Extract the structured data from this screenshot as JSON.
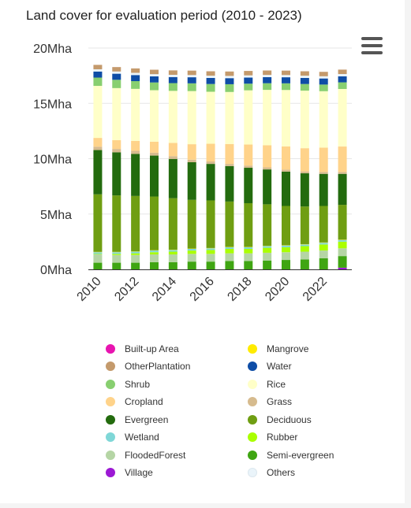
{
  "title": "Land cover for evaluation period (2010 - 2023)",
  "menu_icon": "hamburger-menu-icon",
  "chart_data": {
    "type": "bar",
    "stacked": true,
    "title": "Land cover for evaluation period (2010 - 2023)",
    "y_ticks": [
      "0Mha",
      "5Mha",
      "10Mha",
      "15Mha",
      "20Mha"
    ],
    "ylim": [
      0,
      20
    ],
    "y_unit": "Mha",
    "categories": [
      "2010",
      "2011",
      "2012",
      "2013",
      "2014",
      "2015",
      "2016",
      "2017",
      "2018",
      "2019",
      "2020",
      "2021",
      "2022",
      "2023"
    ],
    "x_tick_labels": [
      "2010",
      "",
      "2012",
      "",
      "2014",
      "",
      "2016",
      "",
      "2018",
      "",
      "2020",
      "",
      "2022",
      ""
    ],
    "grid": true,
    "legend_position": "bottom",
    "series": [
      {
        "name": "Village",
        "color": "#9c19d4",
        "values": [
          0,
          0,
          0,
          0,
          0,
          0,
          0,
          0,
          0,
          0,
          0,
          0,
          0,
          0.15
        ]
      },
      {
        "name": "Semi-evergreen",
        "color": "#3fa512",
        "values": [
          0.6,
          0.6,
          0.6,
          0.65,
          0.65,
          0.7,
          0.7,
          0.75,
          0.75,
          0.8,
          0.85,
          0.9,
          1.0,
          1.05
        ]
      },
      {
        "name": "FloodedForest",
        "color": "#b5d5a5",
        "values": [
          0.75,
          0.7,
          0.7,
          0.7,
          0.7,
          0.7,
          0.7,
          0.7,
          0.7,
          0.7,
          0.7,
          0.7,
          0.7,
          0.7
        ]
      },
      {
        "name": "Rubber",
        "color": "#aaff00",
        "values": [
          0.05,
          0.1,
          0.15,
          0.2,
          0.25,
          0.3,
          0.35,
          0.4,
          0.4,
          0.45,
          0.45,
          0.5,
          0.55,
          0.6
        ]
      },
      {
        "name": "Wetland",
        "color": "#7fd7d7",
        "values": [
          0.15,
          0.15,
          0.15,
          0.15,
          0.15,
          0.15,
          0.15,
          0.15,
          0.15,
          0.15,
          0.15,
          0.15,
          0.15,
          0.15
        ]
      },
      {
        "name": "Mangrove",
        "color": "#ffeb00",
        "values": [
          0.03,
          0.03,
          0.03,
          0.03,
          0.03,
          0.03,
          0.03,
          0.03,
          0.03,
          0.03,
          0.03,
          0.03,
          0.03,
          0.03
        ]
      },
      {
        "name": "Deciduous",
        "color": "#6f9e12",
        "values": [
          5.2,
          5.1,
          5.0,
          4.85,
          4.65,
          4.4,
          4.3,
          4.1,
          3.95,
          3.75,
          3.55,
          3.4,
          3.3,
          3.15
        ]
      },
      {
        "name": "Evergreen",
        "color": "#236b0e",
        "values": [
          4.0,
          3.9,
          3.8,
          3.7,
          3.55,
          3.4,
          3.3,
          3.2,
          3.2,
          3.15,
          3.1,
          3.0,
          2.9,
          2.8
        ]
      },
      {
        "name": "Grass",
        "color": "#d6bb8e",
        "values": [
          0.3,
          0.3,
          0.28,
          0.26,
          0.25,
          0.23,
          0.22,
          0.2,
          0.2,
          0.19,
          0.18,
          0.17,
          0.17,
          0.17
        ]
      },
      {
        "name": "Cropland",
        "color": "#ffd38a",
        "values": [
          0.8,
          0.8,
          0.9,
          1.0,
          1.2,
          1.4,
          1.6,
          1.8,
          1.9,
          2.0,
          2.1,
          2.1,
          2.2,
          2.3
        ]
      },
      {
        "name": "Rice",
        "color": "#ffffc8",
        "values": [
          4.7,
          4.7,
          4.7,
          4.65,
          4.7,
          4.8,
          4.7,
          4.7,
          4.9,
          5.0,
          5.1,
          5.2,
          5.1,
          5.2
        ]
      },
      {
        "name": "Shrub",
        "color": "#88cf70",
        "values": [
          0.75,
          0.75,
          0.7,
          0.7,
          0.7,
          0.7,
          0.7,
          0.7,
          0.6,
          0.6,
          0.6,
          0.6,
          0.6,
          0.6
        ]
      },
      {
        "name": "Water",
        "color": "#0e4da6",
        "values": [
          0.55,
          0.55,
          0.55,
          0.55,
          0.55,
          0.55,
          0.55,
          0.55,
          0.55,
          0.55,
          0.55,
          0.55,
          0.55,
          0.55
        ]
      },
      {
        "name": "Others",
        "color": "#eaf4fa",
        "values": [
          0.2,
          0.2,
          0.2,
          0.2,
          0.2,
          0.2,
          0.2,
          0.2,
          0.2,
          0.2,
          0.2,
          0.2,
          0.2,
          0.2
        ]
      },
      {
        "name": "OtherPlantation",
        "color": "#c49a6c",
        "values": [
          0.4,
          0.4,
          0.4,
          0.4,
          0.4,
          0.4,
          0.4,
          0.4,
          0.4,
          0.4,
          0.4,
          0.4,
          0.4,
          0.4
        ]
      },
      {
        "name": "Built-up Area",
        "color": "#e814b0",
        "values": [
          0,
          0,
          0,
          0,
          0,
          0,
          0,
          0,
          0,
          0,
          0,
          0,
          0,
          0
        ]
      }
    ],
    "legend": [
      {
        "name": "Built-up Area",
        "color": "#e814b0"
      },
      {
        "name": "Mangrove",
        "color": "#ffeb00"
      },
      {
        "name": "OtherPlantation",
        "color": "#c49a6c"
      },
      {
        "name": "Water",
        "color": "#0e4da6"
      },
      {
        "name": "Shrub",
        "color": "#88cf70"
      },
      {
        "name": "Rice",
        "color": "#ffffc8"
      },
      {
        "name": "Cropland",
        "color": "#ffd38a"
      },
      {
        "name": "Grass",
        "color": "#d6bb8e"
      },
      {
        "name": "Evergreen",
        "color": "#236b0e"
      },
      {
        "name": "Deciduous",
        "color": "#6f9e12"
      },
      {
        "name": "Wetland",
        "color": "#7fd7d7"
      },
      {
        "name": "Rubber",
        "color": "#aaff00"
      },
      {
        "name": "FloodedForest",
        "color": "#b5d5a5"
      },
      {
        "name": "Semi-evergreen",
        "color": "#3fa512"
      },
      {
        "name": "Village",
        "color": "#9c19d4"
      },
      {
        "name": "Others",
        "color": "#eaf4fa"
      }
    ]
  }
}
